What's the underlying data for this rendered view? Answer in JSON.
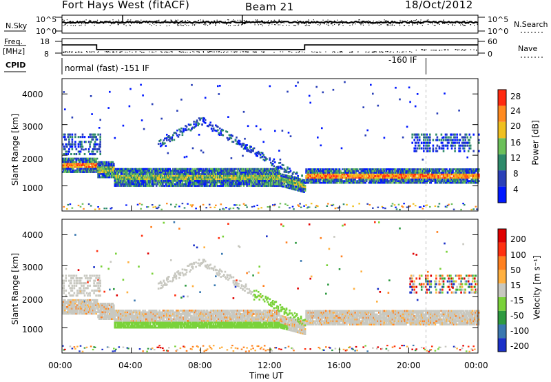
{
  "header": {
    "title": "Fort Hays West (fitACF)",
    "beam": "Beam 21",
    "date": "18/Oct/2012"
  },
  "strips": {
    "nsky_label": "N.Sky",
    "nsky_ticks": [
      "10^5",
      "10^0"
    ],
    "nsearch_label": "N.Search",
    "nsearch_ticks": [
      "10^5",
      "10^0"
    ],
    "freq_label_1": "Freq.",
    "freq_label_2": "[MHz]",
    "freq_ticks": [
      "18",
      "8"
    ],
    "nave_label": "Nave",
    "nave_ticks": [
      "60",
      "0"
    ],
    "cpid_label": "CPID",
    "cpid_text_1": "normal (fast) -151 IF",
    "cpid_text_2": "-160 IF"
  },
  "panels": {
    "power": {
      "ylabel": "Slant Range [km]",
      "yticks": [
        "1000",
        "2000",
        "3000",
        "4000"
      ],
      "cbar_label": "Power [dB]",
      "cbar_ticks": [
        "4",
        "8",
        "12",
        "16",
        "20",
        "24",
        "28"
      ],
      "cbar_colors": [
        "#0018ff",
        "#2a40b8",
        "#2e8a6a",
        "#6cc05a",
        "#f0c020",
        "#ff8a20",
        "#ff2a10"
      ]
    },
    "velocity": {
      "ylabel": "Slant Range [km]",
      "yticks": [
        "1000",
        "2000",
        "3000",
        "4000"
      ],
      "cbar_label": "Velocity [m s⁻¹]",
      "cbar_ticks": [
        "200",
        "100",
        "50",
        "15",
        "-15",
        "-50",
        "-100",
        "-200"
      ],
      "cbar_colors": [
        "#1a30c8",
        "#3a78b0",
        "#2e9a40",
        "#7ad23a",
        "#c8c8c0",
        "#ffb040",
        "#ff8020",
        "#ff3010",
        "#e00000"
      ]
    }
  },
  "xaxis": {
    "label": "Time UT",
    "ticks": [
      "00:00",
      "04:00",
      "08:00",
      "12:00",
      "16:00",
      "20:00",
      "00:00"
    ]
  },
  "chart_data": {
    "type": "heatmap",
    "title": "Fort Hays West (fitACF)",
    "xlabel": "Time UT",
    "ylabel": "Slant Range [km]",
    "xlim": [
      0,
      24
    ],
    "ylim": [
      180,
      4500
    ],
    "series": [
      {
        "name": "Power [dB]",
        "colorbar": [
          4,
          8,
          12,
          16,
          20,
          24,
          28
        ]
      },
      {
        "name": "Velocity [m s⁻¹]",
        "colorbar": [
          -200,
          -100,
          -50,
          -15,
          15,
          50,
          100,
          200
        ]
      }
    ],
    "frequency_mhz": [
      {
        "t0": 0,
        "t1": 2.0,
        "value": 15
      },
      {
        "t0": 2.0,
        "t1": 14.0,
        "value": 11
      },
      {
        "t0": 14.0,
        "t1": 24,
        "value": 15
      }
    ],
    "cpid": [
      {
        "t0": 0,
        "t1": 21.0,
        "label": "normal (fast) -151 IF"
      },
      {
        "t0": 21.0,
        "t1": 24,
        "label": "-160 IF"
      }
    ]
  }
}
